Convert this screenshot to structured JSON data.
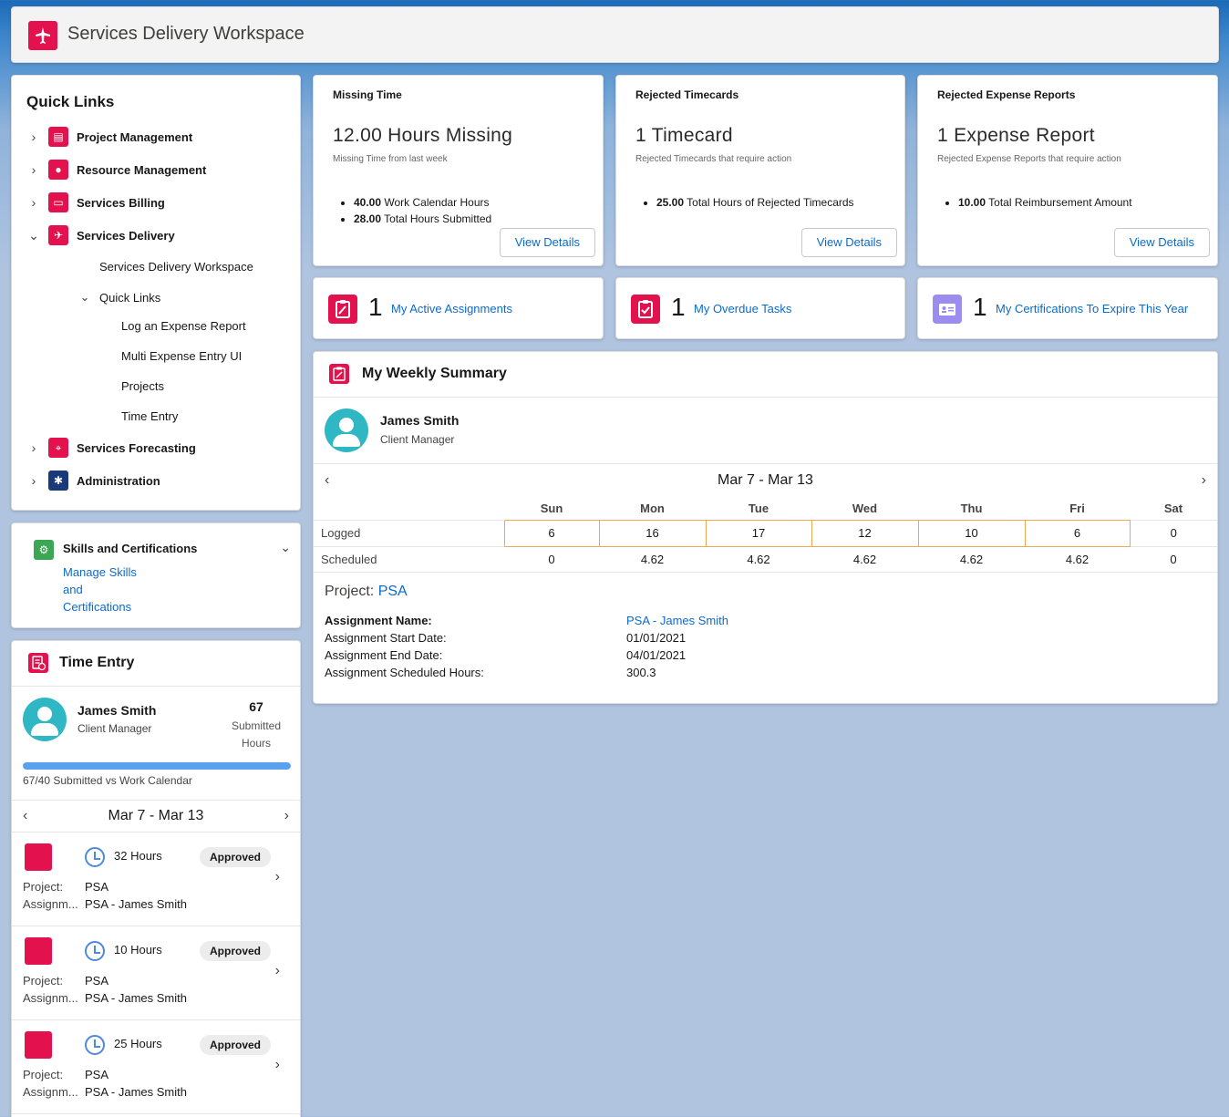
{
  "header": {
    "title": "Services Delivery Workspace"
  },
  "quick_links": {
    "heading": "Quick Links",
    "items": [
      {
        "label": "Project Management",
        "icon": "project-management-icon"
      },
      {
        "label": "Resource Management",
        "icon": "resource-management-icon"
      },
      {
        "label": "Services Billing",
        "icon": "services-billing-icon"
      },
      {
        "label": "Services Delivery",
        "icon": "services-delivery-icon"
      },
      {
        "label": "Services Forecasting",
        "icon": "telescope-icon"
      },
      {
        "label": "Administration",
        "icon": "administration-icon"
      }
    ],
    "delivery_children": {
      "workspace": "Services Delivery Workspace",
      "quick_links": "Quick Links",
      "links": [
        "Log an Expense Report",
        "Multi Expense Entry UI",
        "Projects",
        "Time Entry"
      ]
    }
  },
  "skills": {
    "title": "Skills and Certifications",
    "link": "Manage Skills and Certifications"
  },
  "time_entry": {
    "title": "Time Entry",
    "user_name": "James Smith",
    "user_role": "Client Manager",
    "submitted_hours": "67",
    "submitted_label": "Submitted Hours",
    "progress_fraction": 1.0,
    "progress_label": "67/40 Submitted vs Work Calendar",
    "week": "Mar 7 - Mar 13",
    "entries": [
      {
        "hours": "32 Hours",
        "status": "Approved",
        "project_key": "Project:",
        "project": "PSA",
        "assign_key": "Assignm...",
        "assignment": "PSA - James Smith"
      },
      {
        "hours": "10 Hours",
        "status": "Approved",
        "project_key": "Project:",
        "project": "PSA",
        "assign_key": "Assignm...",
        "assignment": "PSA - James Smith"
      },
      {
        "hours": "25 Hours",
        "status": "Approved",
        "project_key": "Project:",
        "project": "PSA",
        "assign_key": "Assignm...",
        "assignment": "PSA - James Smith"
      }
    ]
  },
  "stats": [
    {
      "title": "Missing Time",
      "big": "12.00  Hours Missing",
      "sub": "Missing Time from last week",
      "bullets": [
        {
          "value": "40.00",
          "text": " Work Calendar Hours"
        },
        {
          "value": "28.00",
          "text": " Total Hours Submitted"
        }
      ],
      "button": "View Details"
    },
    {
      "title": "Rejected Timecards",
      "big": "1  Timecard",
      "sub": "Rejected Timecards that require action",
      "bullets": [
        {
          "value": "25.00",
          "text": " Total Hours of Rejected Timecards"
        }
      ],
      "button": "View Details"
    },
    {
      "title": "Rejected Expense Reports",
      "big": "1  Expense Report",
      "sub": "Rejected Expense Reports that require action",
      "bullets": [
        {
          "value": "10.00",
          "text": " Total Reimbursement Amount"
        }
      ],
      "button": "View Details"
    }
  ],
  "counters": [
    {
      "count": "1",
      "label": "My Active Assignments",
      "icon": "assignment-icon"
    },
    {
      "count": "1",
      "label": "My Overdue Tasks",
      "icon": "task-icon"
    },
    {
      "count": "1",
      "label": "My Certifications To Expire This Year",
      "icon": "certification-icon"
    }
  ],
  "weekly_summary": {
    "title": "My Weekly Summary",
    "user_name": "James Smith",
    "user_role": "Client Manager",
    "week": "Mar 7 - Mar 13",
    "days": [
      "Sun",
      "Mon",
      "Tue",
      "Wed",
      "Thu",
      "Fri",
      "Sat"
    ],
    "rows": [
      {
        "label": "Logged",
        "values": [
          "6",
          "16",
          "17",
          "12",
          "10",
          "6",
          "0"
        ]
      },
      {
        "label": "Scheduled",
        "values": [
          "0",
          "4.62",
          "4.62",
          "4.62",
          "4.62",
          "4.62",
          "0"
        ]
      }
    ],
    "project_label": "Project:",
    "project": "PSA",
    "details": [
      {
        "key": "Assignment Name:",
        "value": "PSA - James Smith"
      },
      {
        "key": "Assignment Start Date:",
        "value": "01/01/2021"
      },
      {
        "key": "Assignment End Date:",
        "value": "04/01/2021"
      },
      {
        "key": "Assignment Scheduled Hours:",
        "value": "300.3"
      }
    ]
  }
}
